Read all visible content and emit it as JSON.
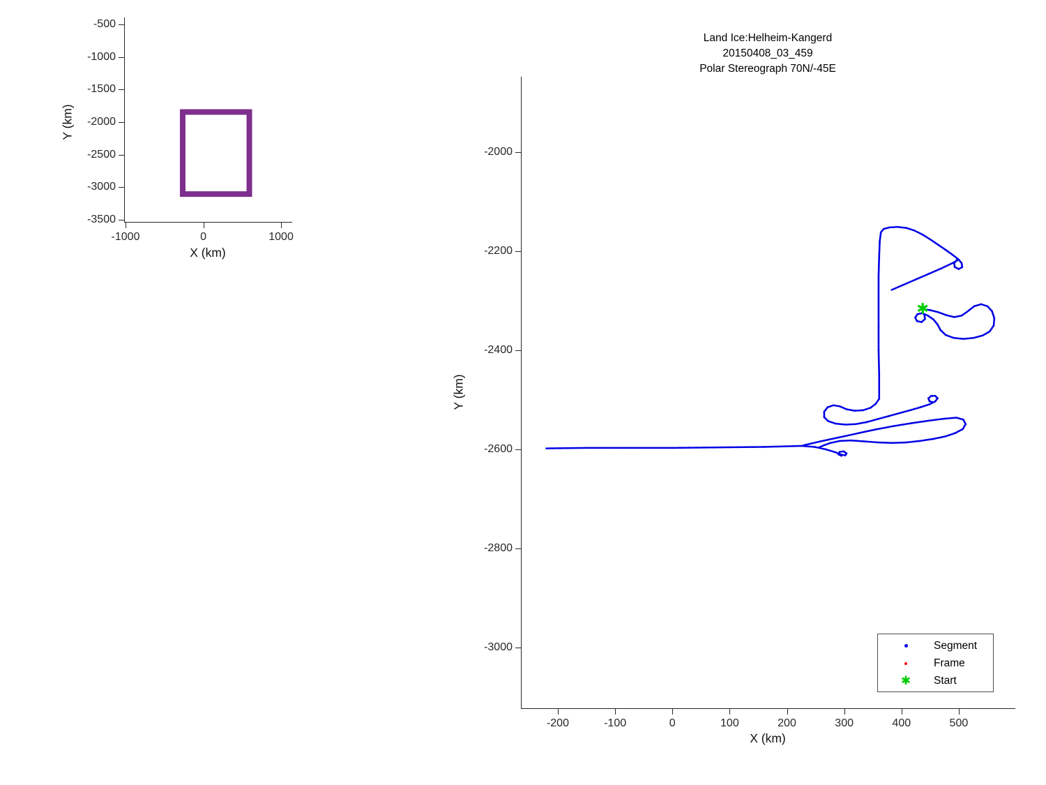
{
  "window": {
    "background": "#FFFFFF"
  },
  "title": {
    "line1": "Land Ice:Helheim-Kangerd",
    "line2": "20150408_03_459",
    "line3": "Polar Stereograph 70N/-45E"
  },
  "overview": {
    "xlabel": "X (km)",
    "ylabel": "Y (km)"
  },
  "main": {
    "xlabel": "X (km)",
    "ylabel": "Y (km)"
  },
  "legend": {
    "items": [
      {
        "label": "Segment",
        "marker": "dot",
        "color": "#0000E6"
      },
      {
        "label": "Frame",
        "marker": "dot",
        "color": "#FF0000"
      },
      {
        "label": "Start",
        "marker": "hexagram",
        "glyph": "✱",
        "color": "#00CC00"
      }
    ]
  },
  "chart_data": [
    {
      "id": "overview",
      "type": "line",
      "title": "",
      "xlabel": "X (km)",
      "ylabel": "Y (km)",
      "xlim": [
        -1018,
        1134
      ],
      "ylim": [
        -3532,
        -393
      ],
      "xticks": [
        -1000,
        0,
        1000
      ],
      "yticks": [
        -500,
        -1000,
        -1500,
        -2000,
        -2500,
        -3000,
        -3500
      ],
      "grid": false,
      "series": [
        {
          "name": "flight-region-box",
          "type": "polyline",
          "color": "#7E2F8E",
          "line_width": 8,
          "x": [
            -265,
            592,
            592,
            -265,
            -265
          ],
          "y": [
            -1845,
            -1845,
            -3105,
            -3105,
            -1845
          ]
        }
      ]
    },
    {
      "id": "main",
      "type": "scatter",
      "title": "Land Ice:Helheim-Kangerd\n20150408_03_459\nPolar Stereograph 70N/-45E",
      "xlabel": "X (km)",
      "ylabel": "Y (km)",
      "xlim": [
        -264.5,
        597.5
      ],
      "ylim": [
        -3122.5,
        -1847.9
      ],
      "xticks": [
        -200,
        -100,
        0,
        100,
        200,
        300,
        400,
        500
      ],
      "yticks": [
        -2000,
        -2200,
        -2400,
        -2600,
        -2800,
        -3000
      ],
      "grid": false,
      "legend_position": "bottom-right",
      "series": [
        {
          "name": "Segment",
          "color": "#0000E6",
          "marker": "dot",
          "strokes": [
            [
              [
                -220,
                -2598
              ],
              [
                -150,
                -2597
              ],
              [
                -80,
                -2597
              ],
              [
                0,
                -2597
              ],
              [
                80,
                -2596
              ],
              [
                160,
                -2595
              ],
              [
                225,
                -2593
              ],
              [
                248,
                -2595
              ],
              [
                268,
                -2600
              ],
              [
                285,
                -2606
              ],
              [
                296,
                -2611
              ],
              [
                302,
                -2612
              ],
              [
                304,
                -2608
              ],
              [
                299,
                -2604
              ],
              [
                292,
                -2605
              ],
              [
                290,
                -2610
              ],
              [
                295,
                -2613
              ]
            ],
            [
              [
                228,
                -2592
              ],
              [
                258,
                -2584
              ],
              [
                290,
                -2576
              ],
              [
                322,
                -2568
              ],
              [
                354,
                -2560
              ],
              [
                386,
                -2553
              ],
              [
                418,
                -2547
              ],
              [
                448,
                -2542
              ],
              [
                475,
                -2538
              ],
              [
                496,
                -2536
              ],
              [
                508,
                -2540
              ],
              [
                512,
                -2549
              ],
              [
                507,
                -2559
              ],
              [
                494,
                -2567
              ],
              [
                476,
                -2574
              ],
              [
                455,
                -2579
              ],
              [
                432,
                -2583
              ],
              [
                408,
                -2586
              ],
              [
                384,
                -2587
              ],
              [
                360,
                -2586
              ],
              [
                336,
                -2584
              ],
              [
                312,
                -2582
              ],
              [
                292,
                -2583
              ],
              [
                276,
                -2587
              ],
              [
                264,
                -2592
              ],
              [
                256,
                -2596
              ]
            ],
            [
              [
                361,
                -2498
              ],
              [
                355,
                -2508
              ],
              [
                346,
                -2516
              ],
              [
                333,
                -2521
              ],
              [
                318,
                -2522
              ],
              [
                304,
                -2519
              ],
              [
                292,
                -2513
              ],
              [
                281,
                -2511
              ],
              [
                271,
                -2515
              ],
              [
                265,
                -2524
              ],
              [
                265,
                -2535
              ],
              [
                272,
                -2543
              ],
              [
                285,
                -2548
              ],
              [
                302,
                -2550
              ],
              [
                320,
                -2549
              ],
              [
                339,
                -2545
              ],
              [
                358,
                -2539
              ],
              [
                377,
                -2533
              ],
              [
                396,
                -2527
              ],
              [
                415,
                -2521
              ],
              [
                433,
                -2515
              ],
              [
                449,
                -2509
              ],
              [
                459,
                -2503
              ],
              [
                463,
                -2497
              ],
              [
                459,
                -2492
              ],
              [
                452,
                -2492
              ],
              [
                447,
                -2497
              ],
              [
                449,
                -2503
              ],
              [
                456,
                -2505
              ]
            ],
            [
              [
                361,
                -2496
              ],
              [
                361,
                -2450
              ],
              [
                360,
                -2400
              ],
              [
                360,
                -2350
              ],
              [
                360,
                -2300
              ],
              [
                360,
                -2250
              ],
              [
                361,
                -2210
              ],
              [
                362,
                -2180
              ],
              [
                364,
                -2162
              ],
              [
                369,
                -2155
              ],
              [
                379,
                -2152
              ],
              [
                393,
                -2151
              ],
              [
                408,
                -2153
              ],
              [
                422,
                -2158
              ],
              [
                436,
                -2166
              ],
              [
                450,
                -2176
              ],
              [
                464,
                -2187
              ],
              [
                478,
                -2198
              ],
              [
                490,
                -2208
              ],
              [
                499,
                -2216
              ],
              [
                505,
                -2224
              ],
              [
                506,
                -2232
              ],
              [
                500,
                -2236
              ],
              [
                493,
                -2232
              ],
              [
                492,
                -2224
              ],
              [
                497,
                -2217
              ]
            ],
            [
              [
                383,
                -2278
              ],
              [
                403,
                -2268
              ],
              [
                425,
                -2257
              ],
              [
                447,
                -2246
              ],
              [
                469,
                -2235
              ],
              [
                489,
                -2224
              ],
              [
                497,
                -2219
              ]
            ],
            [
              [
                437,
                -2317
              ],
              [
                450,
                -2319
              ],
              [
                464,
                -2323
              ],
              [
                478,
                -2329
              ],
              [
                492,
                -2333
              ],
              [
                505,
                -2330
              ],
              [
                516,
                -2321
              ],
              [
                527,
                -2311
              ],
              [
                539,
                -2307
              ],
              [
                550,
                -2311
              ],
              [
                558,
                -2321
              ],
              [
                562,
                -2335
              ],
              [
                561,
                -2350
              ],
              [
                554,
                -2362
              ],
              [
                542,
                -2370
              ],
              [
                526,
                -2375
              ],
              [
                508,
                -2377
              ],
              [
                491,
                -2375
              ],
              [
                477,
                -2369
              ],
              [
                468,
                -2359
              ],
              [
                463,
                -2348
              ],
              [
                456,
                -2338
              ],
              [
                446,
                -2330
              ],
              [
                436,
                -2325
              ],
              [
                428,
                -2327
              ],
              [
                424,
                -2334
              ],
              [
                427,
                -2341
              ],
              [
                435,
                -2343
              ],
              [
                441,
                -2337
              ],
              [
                440,
                -2329
              ]
            ]
          ]
        },
        {
          "name": "Frame",
          "color": "#FF0000",
          "marker": "dot",
          "strokes": []
        },
        {
          "name": "Start",
          "color": "#00CC00",
          "marker": "hexagram",
          "point": [
            437,
            -2317
          ]
        }
      ]
    }
  ]
}
